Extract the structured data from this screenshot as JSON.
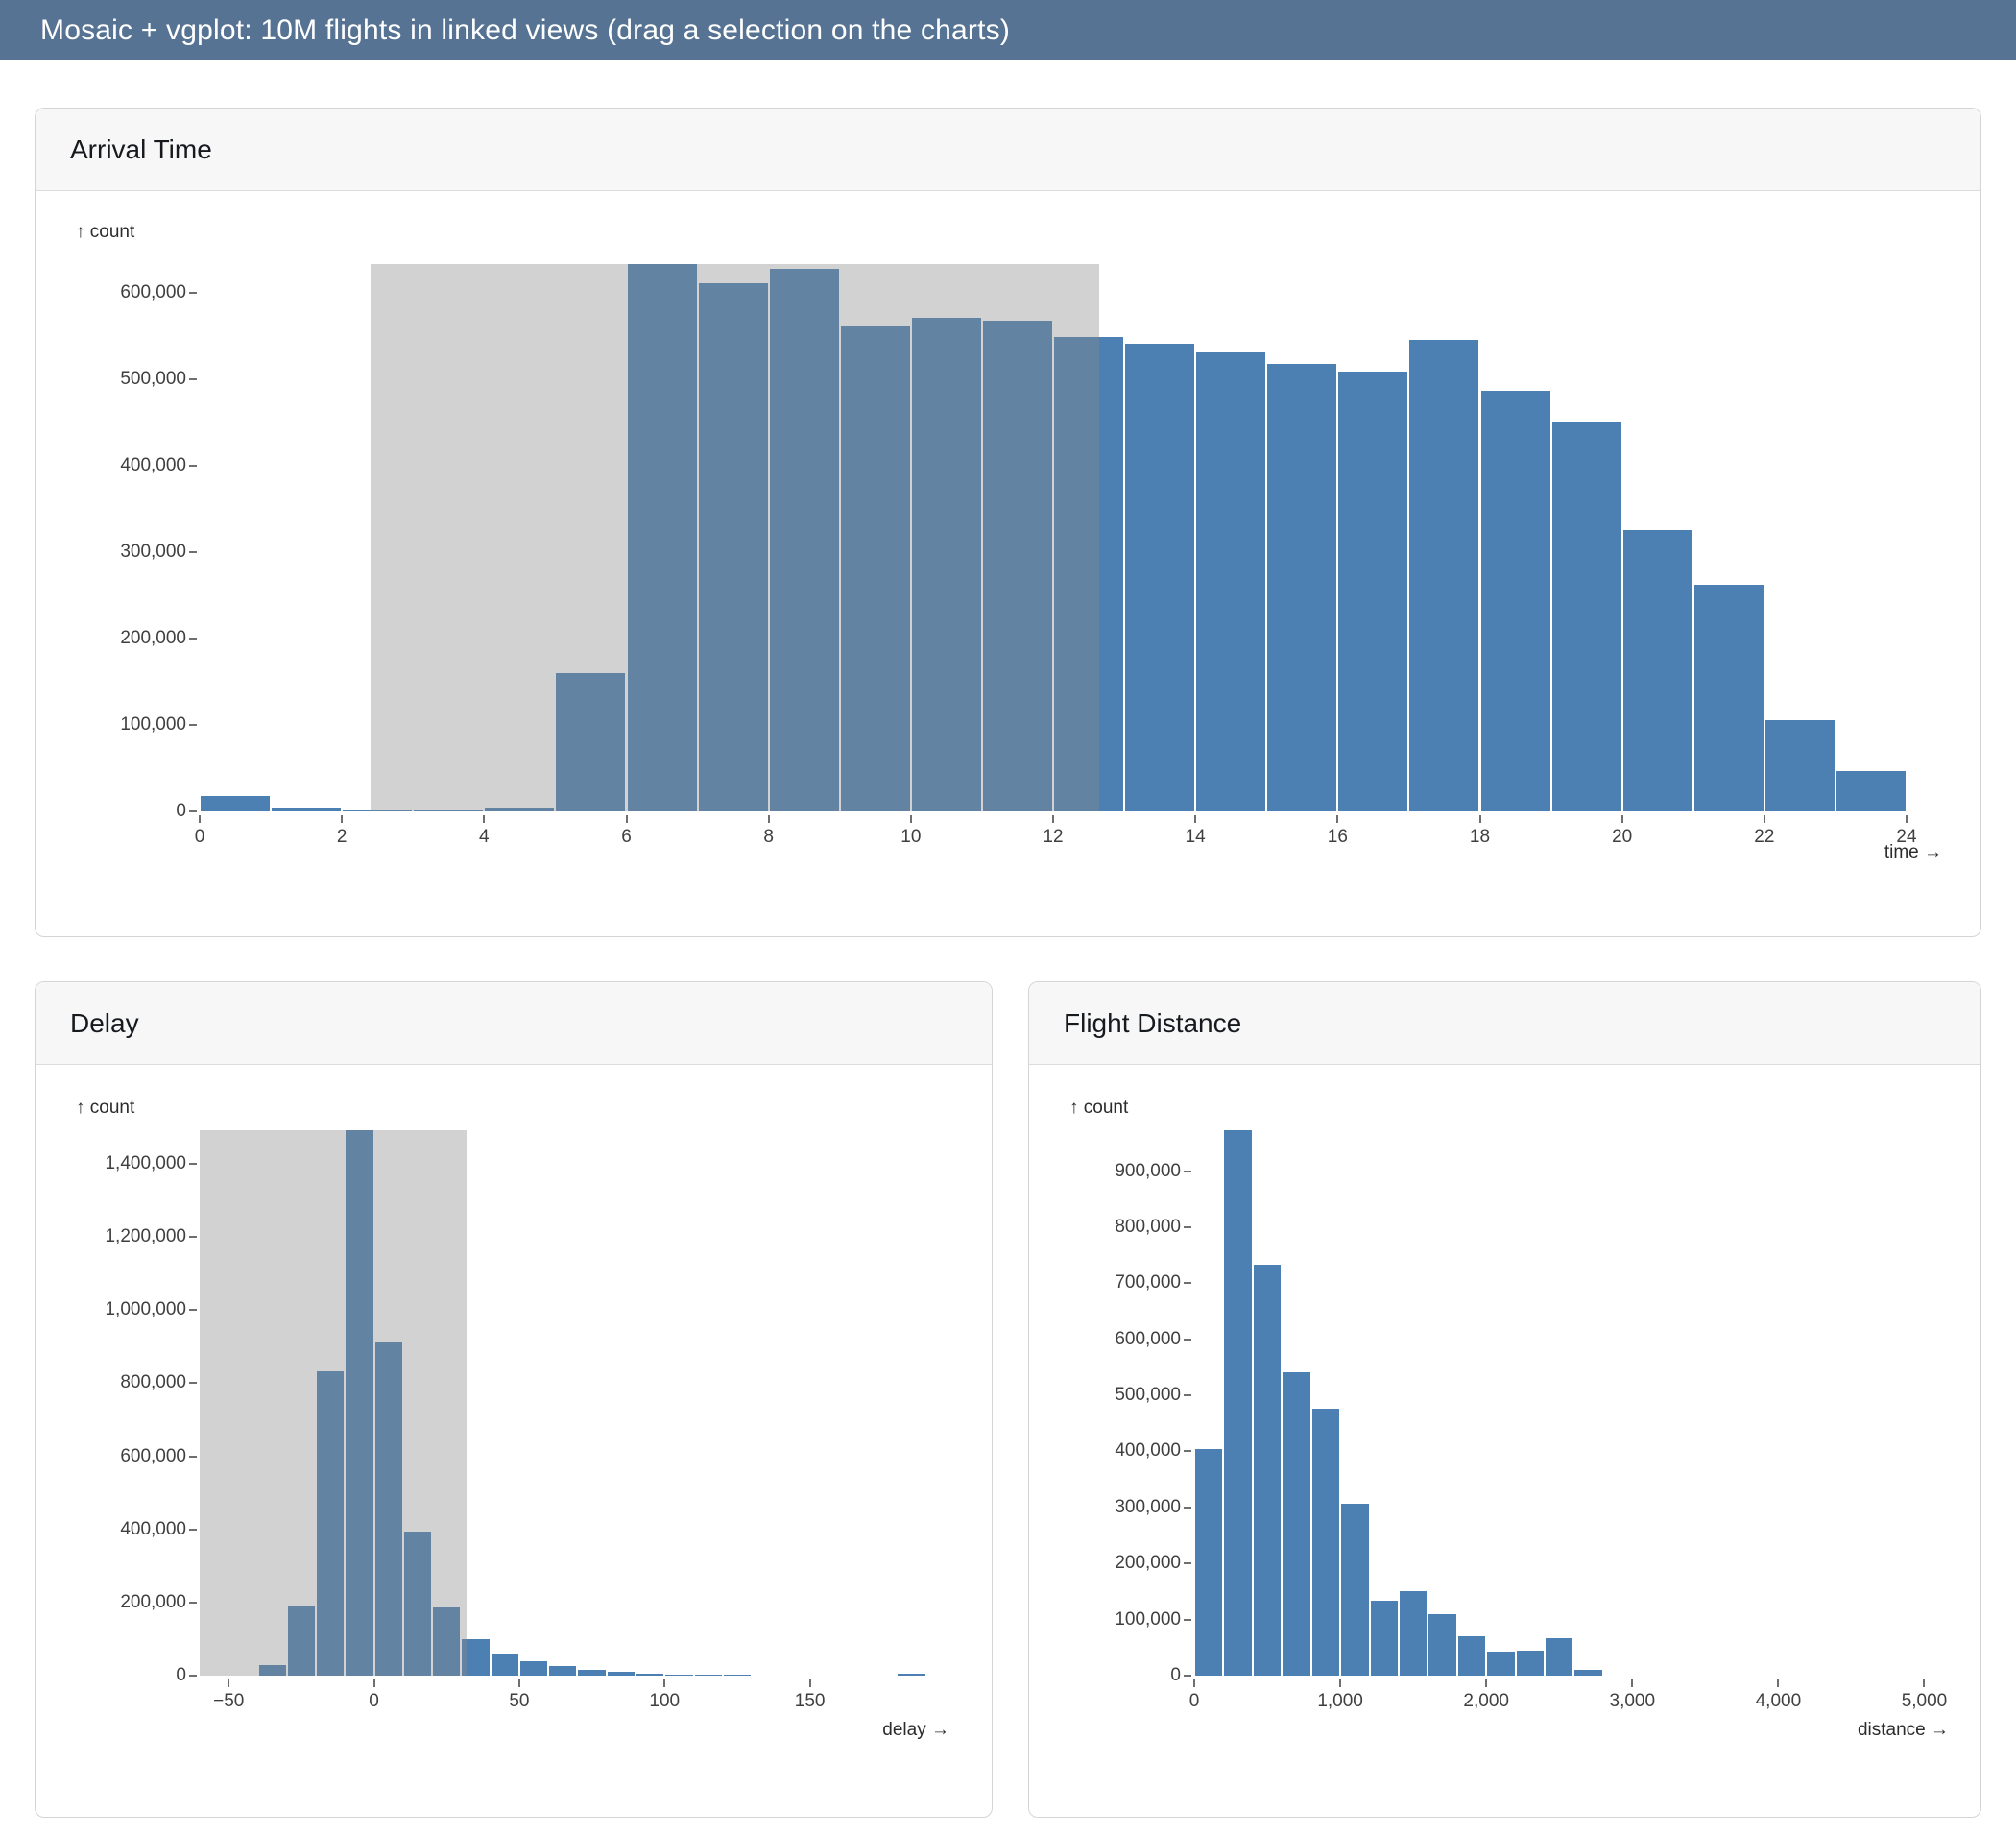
{
  "header": {
    "title": "Mosaic + vgplot: 10M flights in linked views (drag a selection on the charts)"
  },
  "colors": {
    "header_bg": "#567394",
    "bar": "#4d80b2",
    "brush_overlay": "rgba(137,137,137,0.38)",
    "card_header_bg": "#f7f7f8",
    "card_border": "#d5d5d8",
    "tick": "#6f6f6f"
  },
  "chart_data": [
    {
      "id": "arrival",
      "type": "bar",
      "title": "Arrival Time",
      "count_axis_label": "↑ count",
      "xlabel": "time →",
      "ylabel": "count",
      "grid": false,
      "legend_position": "none",
      "xlim": [
        0,
        24
      ],
      "ylim": [
        0,
        633000
      ],
      "bin_width": 1,
      "x": [
        0,
        1,
        2,
        3,
        4,
        5,
        6,
        7,
        8,
        9,
        10,
        11,
        12,
        13,
        14,
        15,
        16,
        17,
        18,
        19,
        20,
        21,
        22,
        23
      ],
      "values": [
        18000,
        4000,
        1000,
        1500,
        4000,
        160000,
        633000,
        611000,
        627000,
        562000,
        571000,
        568000,
        549000,
        541000,
        531000,
        517000,
        509000,
        545000,
        486000,
        451000,
        325000,
        262000,
        106000,
        47000
      ],
      "x_tick_values": [
        0,
        2,
        4,
        6,
        8,
        10,
        12,
        14,
        16,
        18,
        20,
        22,
        24
      ],
      "x_tick_labels": [
        "0",
        "2",
        "4",
        "6",
        "8",
        "10",
        "12",
        "14",
        "16",
        "18",
        "20",
        "22",
        "24"
      ],
      "y_tick_values": [
        0,
        100000,
        200000,
        300000,
        400000,
        500000,
        600000
      ],
      "y_tick_labels": [
        "0",
        "100,000",
        "200,000",
        "300,000",
        "400,000",
        "500,000",
        "600,000"
      ],
      "selection": [
        2.4,
        12.65
      ]
    },
    {
      "id": "delay",
      "type": "bar",
      "title": "Delay",
      "count_axis_label": "↑ count",
      "xlabel": "delay →",
      "ylabel": "count",
      "grid": false,
      "legend_position": "none",
      "xlim": [
        -60,
        202
      ],
      "ylim": [
        0,
        1492000
      ],
      "bin_width": 10,
      "x": [
        -40,
        -30,
        -20,
        -10,
        0,
        10,
        20,
        30,
        40,
        50,
        60,
        70,
        80,
        90,
        100,
        110,
        120,
        180
      ],
      "values": [
        28000,
        190000,
        832000,
        1492000,
        912000,
        395000,
        186000,
        100000,
        61000,
        39000,
        25000,
        15000,
        10000,
        6000,
        3500,
        2000,
        1200,
        5500
      ],
      "x_tick_values": [
        -50,
        0,
        50,
        100,
        150
      ],
      "x_tick_labels": [
        "−50",
        "0",
        "50",
        "100",
        "150"
      ],
      "y_tick_values": [
        0,
        200000,
        400000,
        600000,
        800000,
        1000000,
        1200000,
        1400000
      ],
      "y_tick_labels": [
        "0",
        "200,000",
        "400,000",
        "600,000",
        "800,000",
        "1,000,000",
        "1,200,000",
        "1,400,000"
      ],
      "selection": [
        -60,
        32
      ]
    },
    {
      "id": "distance",
      "type": "bar",
      "title": "Flight Distance",
      "count_axis_label": "↑ count",
      "xlabel": "distance →",
      "ylabel": "count",
      "grid": false,
      "legend_position": "none",
      "xlim": [
        0,
        5240
      ],
      "ylim": [
        0,
        973000
      ],
      "bin_width": 200,
      "x": [
        0,
        200,
        400,
        600,
        800,
        1000,
        1200,
        1400,
        1600,
        1800,
        2000,
        2200,
        2400,
        2600
      ],
      "values": [
        405000,
        973000,
        733000,
        542000,
        477000,
        307000,
        134000,
        150000,
        109000,
        71000,
        43000,
        44000,
        67000,
        11000
      ],
      "x_tick_values": [
        0,
        1000,
        2000,
        3000,
        4000,
        5000
      ],
      "x_tick_labels": [
        "0",
        "1,000",
        "2,000",
        "3,000",
        "4,000",
        "5,000"
      ],
      "y_tick_values": [
        0,
        100000,
        200000,
        300000,
        400000,
        500000,
        600000,
        700000,
        800000,
        900000
      ],
      "y_tick_labels": [
        "0",
        "100,000",
        "200,000",
        "300,000",
        "400,000",
        "500,000",
        "600,000",
        "700,000",
        "800,000",
        "900,000"
      ],
      "selection": null
    }
  ]
}
